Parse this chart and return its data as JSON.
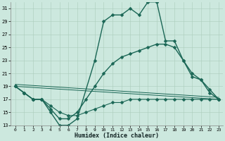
{
  "xlabel": "Humidex (Indice chaleur)",
  "xlim": [
    -0.5,
    23.5
  ],
  "ylim": [
    13,
    32
  ],
  "yticks": [
    13,
    15,
    17,
    19,
    21,
    23,
    25,
    27,
    29,
    31
  ],
  "xticks": [
    0,
    1,
    2,
    3,
    4,
    5,
    6,
    7,
    8,
    9,
    10,
    11,
    12,
    13,
    14,
    15,
    16,
    17,
    18,
    19,
    20,
    21,
    22,
    23
  ],
  "bg_color": "#cce8de",
  "grid_color": "#aaccbb",
  "line_color": "#1a6655",
  "lines": [
    {
      "x": [
        0,
        1,
        2,
        3,
        4,
        5,
        6,
        7,
        9,
        10,
        11,
        12,
        13,
        14,
        15,
        16,
        17,
        18,
        19,
        20,
        21,
        22,
        23
      ],
      "y": [
        19,
        18,
        17,
        17,
        15,
        13,
        13,
        14,
        23,
        29,
        30,
        30,
        31,
        30,
        32,
        32,
        26,
        26,
        23,
        21,
        20,
        18,
        17
      ],
      "marker": "D",
      "markersize": 2.5,
      "linewidth": 1.0
    },
    {
      "x": [
        0,
        1,
        2,
        3,
        4,
        5,
        6,
        7,
        8,
        9,
        10,
        11,
        12,
        13,
        14,
        15,
        16,
        17,
        18,
        19,
        20,
        21,
        22,
        23
      ],
      "y": [
        19,
        18,
        17,
        17,
        15.5,
        14,
        14,
        15,
        17,
        19,
        21,
        22.5,
        23.5,
        24,
        24.5,
        25,
        25.5,
        25.5,
        25,
        23,
        20.5,
        20,
        18.5,
        17
      ],
      "marker": "D",
      "markersize": 2.5,
      "linewidth": 1.0
    },
    {
      "x": [
        0,
        1,
        2,
        3,
        4,
        5,
        6,
        7,
        8,
        9,
        10,
        11,
        12,
        13,
        14,
        15,
        16,
        17,
        18,
        19,
        20,
        21,
        22,
        23
      ],
      "y": [
        19,
        18,
        17,
        17,
        16,
        15,
        14.5,
        14.5,
        15,
        15.5,
        16,
        16.5,
        16.5,
        17,
        17,
        17,
        17,
        17,
        17,
        17,
        17,
        17,
        17,
        17
      ],
      "marker": "D",
      "markersize": 2.5,
      "linewidth": 0.8
    },
    {
      "x": [
        0,
        23
      ],
      "y": [
        19,
        17
      ],
      "marker": null,
      "markersize": 0,
      "linewidth": 0.7
    },
    {
      "x": [
        0,
        23
      ],
      "y": [
        19.3,
        17.3
      ],
      "marker": null,
      "markersize": 0,
      "linewidth": 0.7
    }
  ]
}
